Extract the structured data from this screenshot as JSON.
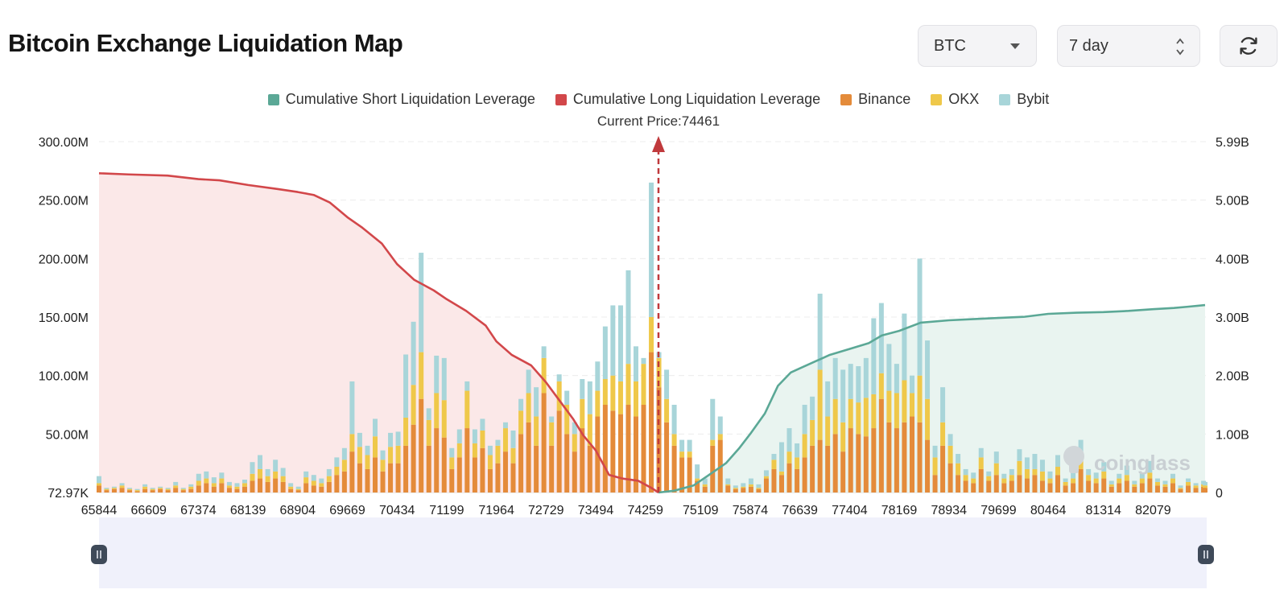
{
  "header": {
    "title": "Bitcoin Exchange Liquidation Map"
  },
  "controls": {
    "coin_select": {
      "value": "BTC",
      "icon": "chevron-down-icon"
    },
    "range_select": {
      "value": "7 day",
      "icon": "up-down-spinner-icon"
    },
    "refresh": {
      "icon": "refresh-icon"
    }
  },
  "watermark": "coinglass",
  "chart_data": {
    "type": "bar",
    "legend": [
      {
        "name": "Cumulative Short Liquidation Leverage",
        "color": "#5ba896"
      },
      {
        "name": "Cumulative Long Liquidation Leverage",
        "color": "#d2474a"
      },
      {
        "name": "Binance",
        "color": "#e48b3a"
      },
      {
        "name": "OKX",
        "color": "#efc84a"
      },
      {
        "name": "Bybit",
        "color": "#a8d5d9"
      }
    ],
    "legend_position": "top-center",
    "current_price_label": "Current Price:74461",
    "current_price": 74461,
    "x_range": [
      65844,
      82880
    ],
    "x_ticks": [
      "65844",
      "66609",
      "67374",
      "68139",
      "68904",
      "69669",
      "70434",
      "71199",
      "71964",
      "72729",
      "73494",
      "74259",
      "75109",
      "75874",
      "76639",
      "77404",
      "78169",
      "78934",
      "79699",
      "80464",
      "81314",
      "82079"
    ],
    "y_left_ticks": [
      "72.97K",
      "50.00M",
      "100.00M",
      "150.00M",
      "200.00M",
      "250.00M",
      "300.00M"
    ],
    "y_left_range": [
      0,
      300000000
    ],
    "y_right_ticks": [
      "0",
      "1.00B",
      "2.00B",
      "3.00B",
      "4.00B",
      "5.00B",
      "5.99B"
    ],
    "y_right_range": [
      0,
      5990000000
    ],
    "grid": true,
    "cumulative_long": {
      "name": "Cumulative Long Liquidation Leverage",
      "x": [
        65844,
        66300,
        66900,
        67374,
        67700,
        68139,
        68600,
        68904,
        69150,
        69400,
        69669,
        69900,
        70200,
        70434,
        70700,
        71000,
        71199,
        71500,
        71800,
        71964,
        72200,
        72500,
        72729,
        72950,
        73150,
        73300,
        73494,
        73700,
        73900,
        74150,
        74350,
        74461
      ],
      "y": [
        5450000000.0,
        5430000000.0,
        5410000000.0,
        5350000000.0,
        5330000000.0,
        5250000000.0,
        5180000000.0,
        5130000000.0,
        5080000000.0,
        4950000000.0,
        4700000000.0,
        4520000000.0,
        4250000000.0,
        3900000000.0,
        3630000000.0,
        3450000000.0,
        3300000000.0,
        3100000000.0,
        2850000000.0,
        2580000000.0,
        2350000000.0,
        2170000000.0,
        1880000000.0,
        1550000000.0,
        1250000000.0,
        980000000.0,
        720000000.0,
        300000000.0,
        240000000.0,
        200000000.0,
        80000000.0,
        0.0
      ]
    },
    "cumulative_short": {
      "name": "Cumulative Short Liquidation Leverage",
      "x": [
        74461,
        74700,
        75000,
        75200,
        75500,
        75700,
        75874,
        76100,
        76300,
        76500,
        76639,
        76900,
        77100,
        77404,
        77700,
        77900,
        78169,
        78500,
        78934,
        79300,
        79699,
        80100,
        80464,
        80900,
        81314,
        81700,
        82079,
        82400,
        82600,
        82880
      ],
      "y": [
        0.0,
        30000000.0,
        120000000.0,
        270000000.0,
        500000000.0,
        750000000.0,
        1000000000.0,
        1350000000.0,
        1820000000.0,
        2050000000.0,
        2120000000.0,
        2250000000.0,
        2350000000.0,
        2450000000.0,
        2550000000.0,
        2680000000.0,
        2760000000.0,
        2900000000.0,
        2940000000.0,
        2960000000.0,
        2980000000.0,
        3000000000.0,
        3050000000.0,
        3070000000.0,
        3080000000.0,
        3100000000.0,
        3130000000.0,
        3150000000.0,
        3170000000.0,
        3200000000.0
      ]
    },
    "bars": {
      "series": [
        "Binance",
        "OKX",
        "Bybit"
      ],
      "points": [
        [
          65844,
          6,
          2,
          6
        ],
        [
          65961,
          2,
          1,
          1
        ],
        [
          66079,
          3,
          1,
          1
        ],
        [
          66198,
          4,
          2,
          2
        ],
        [
          66316,
          2,
          1,
          1
        ],
        [
          66434,
          1,
          1,
          1
        ],
        [
          66552,
          3,
          2,
          2
        ],
        [
          66670,
          2,
          1,
          1
        ],
        [
          66788,
          3,
          1,
          1
        ],
        [
          66906,
          2,
          1,
          1
        ],
        [
          67024,
          4,
          2,
          3
        ],
        [
          67143,
          2,
          1,
          1
        ],
        [
          67261,
          3,
          2,
          2
        ],
        [
          67379,
          6,
          4,
          6
        ],
        [
          67497,
          8,
          4,
          6
        ],
        [
          67615,
          5,
          3,
          5
        ],
        [
          67733,
          8,
          4,
          5
        ],
        [
          67852,
          4,
          2,
          3
        ],
        [
          67970,
          3,
          2,
          3
        ],
        [
          68088,
          5,
          3,
          3
        ],
        [
          68206,
          10,
          6,
          10
        ],
        [
          68324,
          12,
          8,
          12
        ],
        [
          68443,
          9,
          5,
          6
        ],
        [
          68561,
          12,
          6,
          10
        ],
        [
          68679,
          9,
          5,
          7
        ],
        [
          68797,
          3,
          2,
          3
        ],
        [
          68915,
          2,
          1,
          2
        ],
        [
          69033,
          8,
          5,
          5
        ],
        [
          69152,
          6,
          4,
          5
        ],
        [
          69270,
          5,
          3,
          4
        ],
        [
          69388,
          9,
          5,
          6
        ],
        [
          69506,
          15,
          7,
          8
        ],
        [
          69624,
          18,
          10,
          10
        ],
        [
          69742,
          35,
          15,
          45
        ],
        [
          69860,
          25,
          14,
          12
        ],
        [
          69979,
          20,
          12,
          8
        ],
        [
          70097,
          30,
          18,
          15
        ],
        [
          70215,
          18,
          10,
          8
        ],
        [
          70333,
          25,
          14,
          12
        ],
        [
          70451,
          25,
          15,
          12
        ],
        [
          70569,
          40,
          24,
          54
        ],
        [
          70687,
          58,
          34,
          54
        ],
        [
          70806,
          80,
          40,
          85
        ],
        [
          70924,
          40,
          22,
          10
        ],
        [
          71042,
          55,
          30,
          32
        ],
        [
          71160,
          47,
          32,
          36
        ],
        [
          71278,
          20,
          10,
          8
        ],
        [
          71396,
          30,
          12,
          12
        ],
        [
          71514,
          55,
          32,
          8
        ],
        [
          71633,
          30,
          12,
          12
        ],
        [
          71751,
          38,
          15,
          10
        ],
        [
          71869,
          20,
          12,
          8
        ],
        [
          71987,
          25,
          15,
          5
        ],
        [
          72105,
          35,
          20,
          5
        ],
        [
          72223,
          25,
          13,
          15
        ],
        [
          72342,
          50,
          20,
          10
        ],
        [
          72460,
          60,
          25,
          20
        ],
        [
          72578,
          40,
          25,
          25
        ],
        [
          72696,
          85,
          30,
          10
        ],
        [
          72814,
          40,
          20,
          5
        ],
        [
          72932,
          70,
          25,
          6
        ],
        [
          73050,
          50,
          25,
          12
        ],
        [
          73169,
          35,
          15,
          10
        ],
        [
          73287,
          55,
          25,
          17
        ],
        [
          73405,
          40,
          27,
          28
        ],
        [
          73523,
          65,
          22,
          25
        ],
        [
          73641,
          75,
          22,
          45
        ],
        [
          73759,
          70,
          30,
          60
        ],
        [
          73878,
          67,
          28,
          65
        ],
        [
          73996,
          75,
          35,
          80
        ],
        [
          74114,
          65,
          30,
          30
        ],
        [
          74232,
          75,
          35,
          5
        ],
        [
          74350,
          120,
          30,
          115
        ],
        [
          74468,
          90,
          25,
          5
        ],
        [
          74586,
          60,
          20,
          25
        ],
        [
          74704,
          40,
          10,
          25
        ],
        [
          74822,
          30,
          5,
          10
        ],
        [
          74940,
          30,
          5,
          10
        ],
        [
          75058,
          10,
          2,
          12
        ],
        [
          75177,
          5,
          2,
          5
        ],
        [
          75295,
          40,
          5,
          35
        ],
        [
          75413,
          45,
          5,
          15
        ],
        [
          75531,
          6,
          1,
          5
        ],
        [
          75649,
          3,
          1,
          2
        ],
        [
          75767,
          4,
          1,
          3
        ],
        [
          75886,
          5,
          2,
          5
        ],
        [
          76004,
          3,
          1,
          3
        ],
        [
          76122,
          12,
          2,
          5
        ],
        [
          76240,
          20,
          8,
          5
        ],
        [
          76358,
          15,
          3,
          25
        ],
        [
          76476,
          25,
          10,
          20
        ],
        [
          76595,
          20,
          10,
          12
        ],
        [
          76713,
          30,
          20,
          25
        ],
        [
          76831,
          40,
          22,
          20
        ],
        [
          76949,
          45,
          60,
          65
        ],
        [
          77067,
          40,
          25,
          30
        ],
        [
          77185,
          50,
          30,
          35
        ],
        [
          77303,
          35,
          25,
          45
        ],
        [
          77421,
          55,
          25,
          30
        ],
        [
          77540,
          50,
          27,
          31
        ],
        [
          77658,
          48,
          33,
          34
        ],
        [
          77776,
          55,
          29,
          65
        ],
        [
          77894,
          80,
          22,
          60
        ],
        [
          78012,
          60,
          27,
          40
        ],
        [
          78130,
          55,
          30,
          25
        ],
        [
          78248,
          60,
          36,
          57
        ],
        [
          78367,
          65,
          20,
          15
        ],
        [
          78485,
          60,
          40,
          100
        ],
        [
          78603,
          45,
          35,
          50
        ],
        [
          78721,
          15,
          15,
          10
        ],
        [
          78839,
          40,
          20,
          30
        ],
        [
          78957,
          25,
          15,
          10
        ],
        [
          79075,
          15,
          10,
          8
        ],
        [
          79193,
          10,
          5,
          5
        ],
        [
          79312,
          8,
          4,
          5
        ],
        [
          79430,
          20,
          10,
          8
        ],
        [
          79548,
          10,
          4,
          4
        ],
        [
          79666,
          15,
          10,
          10
        ],
        [
          79784,
          8,
          4,
          4
        ],
        [
          79902,
          10,
          5,
          5
        ],
        [
          80021,
          15,
          12,
          10
        ],
        [
          80139,
          12,
          8,
          10
        ],
        [
          80257,
          15,
          5,
          13
        ],
        [
          80375,
          10,
          8,
          10
        ],
        [
          80493,
          8,
          4,
          6
        ],
        [
          80611,
          15,
          7,
          10
        ],
        [
          80730,
          6,
          3,
          3
        ],
        [
          80848,
          8,
          4,
          5
        ],
        [
          80966,
          20,
          10,
          15
        ],
        [
          81084,
          10,
          5,
          5
        ],
        [
          81202,
          8,
          4,
          5
        ],
        [
          81321,
          12,
          6,
          8
        ],
        [
          81439,
          5,
          2,
          3
        ],
        [
          81557,
          8,
          4,
          4
        ],
        [
          81675,
          10,
          5,
          8
        ],
        [
          81793,
          5,
          2,
          3
        ],
        [
          81911,
          8,
          4,
          5
        ],
        [
          82029,
          12,
          5,
          10
        ],
        [
          82148,
          6,
          3,
          3
        ],
        [
          82266,
          5,
          2,
          3
        ],
        [
          82384,
          8,
          4,
          4
        ],
        [
          82502,
          3,
          1,
          2
        ],
        [
          82620,
          6,
          3,
          3
        ],
        [
          82738,
          4,
          2,
          2
        ],
        [
          82856,
          5,
          2,
          3
        ],
        [
          82880,
          4,
          2,
          3
        ]
      ]
    }
  }
}
